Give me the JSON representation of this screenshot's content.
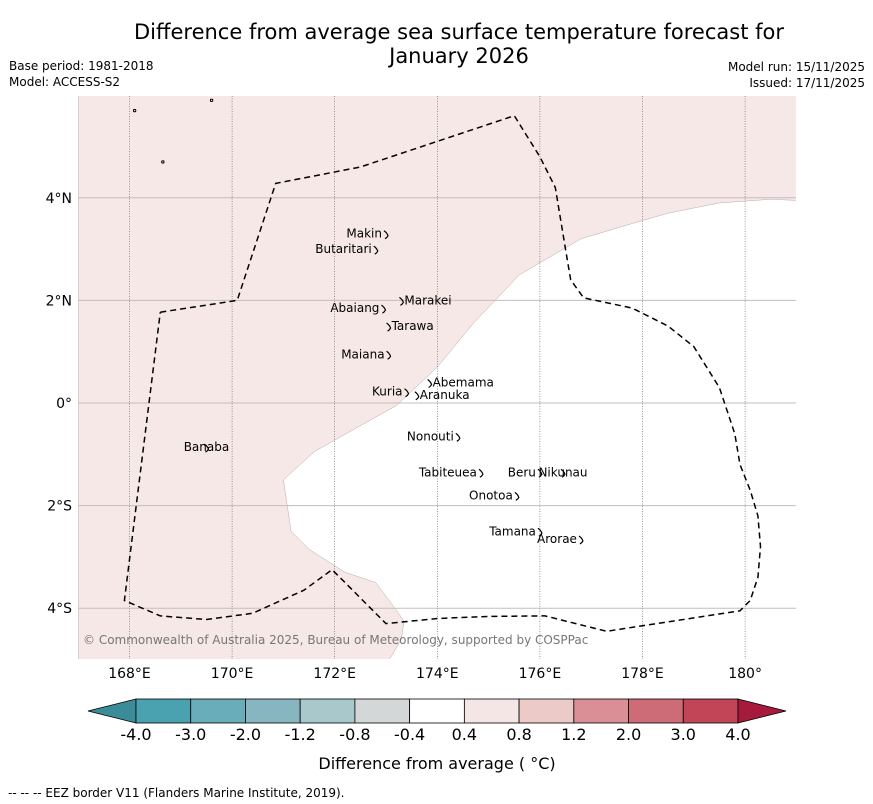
{
  "title": {
    "line1": "Difference from average sea surface temperature forecast for",
    "line2": "January 2026"
  },
  "meta": {
    "base_period": "Base period: 1981-2018",
    "model": "Model: ACCESS-S2",
    "model_run": "Model run: 15/11/2025",
    "issued": "Issued: 17/11/2025"
  },
  "map": {
    "lon_range": [
      167,
      181
    ],
    "lat_range": [
      -5,
      6
    ],
    "lon_ticks": [
      {
        "lon": 168,
        "label": "168°E"
      },
      {
        "lon": 170,
        "label": "170°E"
      },
      {
        "lon": 172,
        "label": "172°E"
      },
      {
        "lon": 174,
        "label": "174°E"
      },
      {
        "lon": 176,
        "label": "176°E"
      },
      {
        "lon": 178,
        "label": "178°E"
      },
      {
        "lon": 180,
        "label": "180°"
      }
    ],
    "lat_ticks": [
      {
        "lat": 4,
        "label": "4°N"
      },
      {
        "lat": 2,
        "label": "2°N"
      },
      {
        "lat": 0,
        "label": "0°"
      },
      {
        "lat": -2,
        "label": "2°S"
      },
      {
        "lat": -4,
        "label": "4°S"
      }
    ],
    "anomaly_fill_color": "#f5e8e6",
    "zero_band_color": "#ffffff",
    "anomaly_band": "0.4 to 0.8",
    "anomaly_region": [
      [
        167,
        6
      ],
      [
        181,
        6
      ],
      [
        181,
        3.95
      ],
      [
        180.5,
        3.97
      ],
      [
        179.5,
        3.9
      ],
      [
        178.5,
        3.7
      ],
      [
        177.8,
        3.5
      ],
      [
        176.8,
        3.2
      ],
      [
        175.6,
        2.5
      ],
      [
        174.7,
        1.55
      ],
      [
        174.0,
        0.7
      ],
      [
        173.2,
        -0.05
      ],
      [
        172.4,
        -0.5
      ],
      [
        171.6,
        -0.95
      ],
      [
        171.0,
        -1.5
      ],
      [
        171.15,
        -2.5
      ],
      [
        171.5,
        -2.85
      ],
      [
        172.2,
        -3.3
      ],
      [
        172.8,
        -3.5
      ],
      [
        173.1,
        -3.9
      ],
      [
        173.35,
        -4.25
      ],
      [
        173.3,
        -4.6
      ],
      [
        173.1,
        -4.95
      ],
      [
        173.05,
        -5
      ],
      [
        167,
        -5
      ]
    ],
    "eez_border": [
      [
        168.6,
        1.77
      ],
      [
        170.1,
        2.0
      ],
      [
        170.85,
        4.28
      ],
      [
        172.5,
        4.6
      ],
      [
        175.5,
        5.6
      ],
      [
        176.0,
        4.8
      ],
      [
        176.3,
        4.2
      ],
      [
        176.5,
        3.0
      ],
      [
        176.6,
        2.4
      ],
      [
        176.85,
        2.05
      ],
      [
        177.8,
        1.85
      ],
      [
        178.5,
        1.5
      ],
      [
        179.0,
        1.1
      ],
      [
        179.5,
        0.3
      ],
      [
        179.8,
        -0.6
      ],
      [
        179.9,
        -1.2
      ],
      [
        180.1,
        -1.7
      ],
      [
        180.25,
        -2.2
      ],
      [
        180.3,
        -2.8
      ],
      [
        180.25,
        -3.4
      ],
      [
        180.1,
        -3.85
      ],
      [
        179.9,
        -4.05
      ],
      [
        177.3,
        -4.45
      ],
      [
        176.1,
        -4.15
      ],
      [
        175.0,
        -4.16
      ],
      [
        174.0,
        -4.2
      ],
      [
        173.0,
        -4.3
      ],
      [
        172.6,
        -3.9
      ],
      [
        172.2,
        -3.5
      ],
      [
        171.95,
        -3.25
      ],
      [
        171.4,
        -3.65
      ],
      [
        170.4,
        -4.1
      ],
      [
        169.5,
        -4.22
      ],
      [
        168.6,
        -4.15
      ],
      [
        167.9,
        -3.85
      ],
      [
        168.6,
        1.77
      ]
    ],
    "islands": [
      {
        "name": "Makin",
        "lon": 173.0,
        "lat": 3.3,
        "label_anchor": "end"
      },
      {
        "name": "Butaritari",
        "lon": 172.8,
        "lat": 3.0,
        "label_anchor": "end"
      },
      {
        "name": "Marakei",
        "lon": 173.3,
        "lat": 2.0,
        "label_anchor": "start"
      },
      {
        "name": "Abaiang",
        "lon": 172.95,
        "lat": 1.85,
        "label_anchor": "end"
      },
      {
        "name": "Tarawa",
        "lon": 173.05,
        "lat": 1.5,
        "label_anchor": "start"
      },
      {
        "name": "Maiana",
        "lon": 173.05,
        "lat": 0.95,
        "label_anchor": "end"
      },
      {
        "name": "Abemama",
        "lon": 173.85,
        "lat": 0.4,
        "label_anchor": "start"
      },
      {
        "name": "Kuria",
        "lon": 173.4,
        "lat": 0.22,
        "label_anchor": "end"
      },
      {
        "name": "Aranuka",
        "lon": 173.6,
        "lat": 0.16,
        "label_anchor": "start"
      },
      {
        "name": "Banaba",
        "lon": 169.5,
        "lat": -0.86,
        "label_anchor": "middle"
      },
      {
        "name": "Nonouti",
        "lon": 174.4,
        "lat": -0.65,
        "label_anchor": "end"
      },
      {
        "name": "Tabiteuea",
        "lon": 174.85,
        "lat": -1.35,
        "label_anchor": "end"
      },
      {
        "name": "Beru",
        "lon": 176.0,
        "lat": -1.35,
        "label_anchor": "end"
      },
      {
        "name": "Nikunau",
        "lon": 176.45,
        "lat": -1.35,
        "label_anchor": "middle"
      },
      {
        "name": "Onotoa",
        "lon": 175.55,
        "lat": -1.8,
        "label_anchor": "end"
      },
      {
        "name": "Tamana",
        "lon": 176.0,
        "lat": -2.5,
        "label_anchor": "end"
      },
      {
        "name": "Arorae",
        "lon": 176.8,
        "lat": -2.65,
        "label_anchor": "end"
      }
    ],
    "copyright": "© Commonwealth of Australia 2025, Bureau of Meteorology, supported by COSPPac"
  },
  "colorbar": {
    "colors": [
      "#3b8b98",
      "#4aa2b0",
      "#68adb9",
      "#87b6c0",
      "#a8c8cc",
      "#d3d7d7",
      "#ffffff",
      "#f4e6e4",
      "#ebcac7",
      "#d98f95",
      "#cd6b76",
      "#c14556",
      "#a61b3b"
    ],
    "tick_labels": [
      "-4.0",
      "-3.0",
      "-2.0",
      "-1.2",
      "-0.8",
      "-0.4",
      "0.4",
      "0.8",
      "1.2",
      "2.0",
      "3.0",
      "4.0"
    ],
    "label": "Difference from average ( °C)"
  },
  "footer": {
    "legend": "--  --  -- EEZ border V11 (Flanders Marine Institute, 2019)."
  }
}
